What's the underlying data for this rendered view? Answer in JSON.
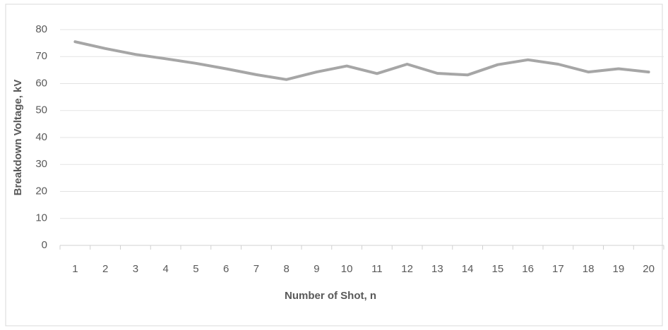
{
  "chart_data": {
    "type": "line",
    "x_label": "Number of Shot, n",
    "y_label": "Breakdown Voltage, kV",
    "categories": [
      "1",
      "2",
      "3",
      "4",
      "5",
      "6",
      "7",
      "8",
      "9",
      "10",
      "11",
      "12",
      "13",
      "14",
      "15",
      "16",
      "17",
      "18",
      "19",
      "20"
    ],
    "series": [
      {
        "color": "#a6a6a6",
        "values": [
          75.5,
          73,
          70.8,
          69.2,
          67.5,
          65.5,
          63.3,
          61.5,
          64.3,
          66.5,
          63.7,
          67.2,
          63.8,
          63.2,
          67,
          68.8,
          67.2,
          64.3,
          65.5,
          64.3
        ]
      }
    ],
    "ylim": [
      0,
      80
    ],
    "yticks": [
      0,
      10,
      20,
      30,
      40,
      50,
      60,
      70,
      80
    ],
    "grid": true
  }
}
